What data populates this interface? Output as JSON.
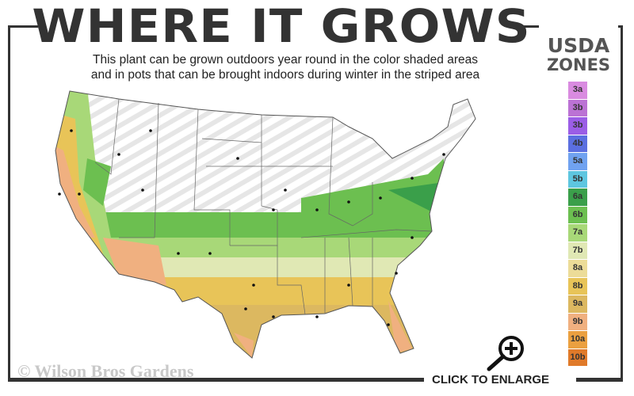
{
  "title": "WHERE IT GROWS",
  "subtitle_line1": "This plant can be grown outdoors year round in the color shaded areas",
  "subtitle_line2": "and in pots that can be brought indoors during winter in the striped area",
  "legend": {
    "heading1": "USDA",
    "heading2": "ZONES",
    "zones": [
      {
        "label": "3a",
        "color": "#d98be0"
      },
      {
        "label": "3b",
        "color": "#bb72d4"
      },
      {
        "label": "3b",
        "color": "#9b5de6"
      },
      {
        "label": "4b",
        "color": "#5b6fe0"
      },
      {
        "label": "5a",
        "color": "#70a2f0"
      },
      {
        "label": "5b",
        "color": "#5ec6e0"
      },
      {
        "label": "6a",
        "color": "#3a9f4a"
      },
      {
        "label": "6b",
        "color": "#6cbf50"
      },
      {
        "label": "7a",
        "color": "#a8d878"
      },
      {
        "label": "7b",
        "color": "#e0e8b4"
      },
      {
        "label": "8a",
        "color": "#ecdc98"
      },
      {
        "label": "8b",
        "color": "#e8c458"
      },
      {
        "label": "9a",
        "color": "#dcb860"
      },
      {
        "label": "9b",
        "color": "#f0b080"
      },
      {
        "label": "10a",
        "color": "#eba040"
      },
      {
        "label": "10b",
        "color": "#e07a2a"
      }
    ]
  },
  "copyright": "© Wilson Bros Gardens",
  "enlarge_label": "CLICK TO ENLARGE"
}
